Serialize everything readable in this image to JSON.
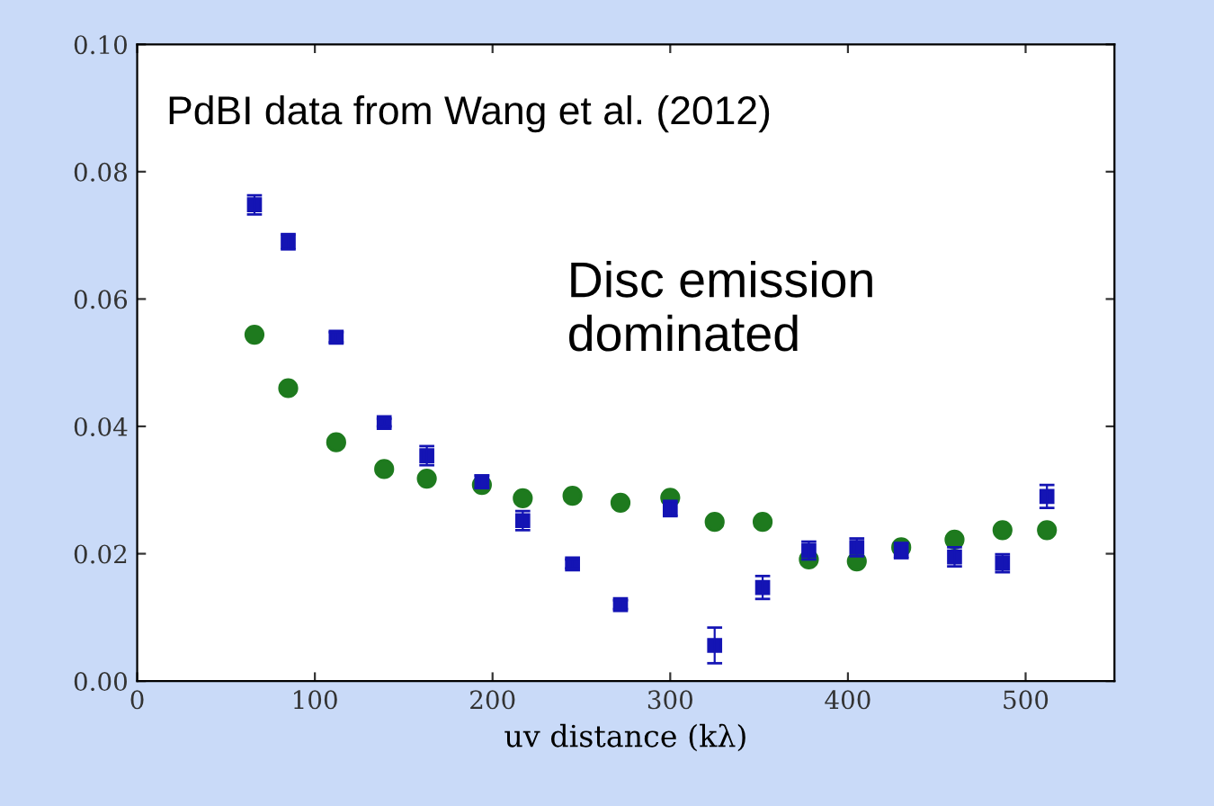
{
  "chart_data": {
    "type": "scatter",
    "xlabel": "uv distance (kλ)",
    "x": [
      66,
      85,
      112,
      139,
      163,
      194,
      217,
      245,
      272,
      300,
      325,
      352,
      378,
      405,
      430,
      460,
      487,
      512
    ],
    "series": [
      {
        "color": "#1414b4",
        "marker": "square",
        "values": [
          0.0748,
          0.069,
          0.054,
          0.0406,
          0.0354,
          0.0313,
          0.0252,
          0.0184,
          0.012,
          0.0271,
          0.0056,
          0.0147,
          0.0205,
          0.021,
          0.0205,
          0.0195,
          0.0185,
          0.029
        ],
        "errors": [
          0.0015,
          0.0012,
          0.0008,
          0.0006,
          0.0015,
          0.001,
          0.0015,
          0.0007,
          0.0007,
          0.0012,
          0.0028,
          0.0018,
          0.0014,
          0.0014,
          0.0012,
          0.0015,
          0.0014,
          0.0018
        ]
      },
      {
        "color": "#1e7a1e",
        "marker": "circle",
        "values": [
          0.0544,
          0.046,
          0.0375,
          0.0333,
          0.0318,
          0.0308,
          0.0287,
          0.0291,
          0.028,
          0.0288,
          0.025,
          0.025,
          0.0191,
          0.0188,
          0.021,
          0.0222,
          0.0237,
          0.0237
        ]
      }
    ],
    "xlim": [
      0,
      550
    ],
    "xticks": [
      0,
      100,
      200,
      300,
      400,
      500
    ],
    "ylim": [
      0,
      0.1
    ],
    "yticks": [
      {
        "value": 0,
        "label": "0.00"
      },
      {
        "value": 0.02,
        "label": "0.02"
      },
      {
        "value": 0.04,
        "label": "0.04"
      },
      {
        "value": 0.06,
        "label": "0.06"
      },
      {
        "value": 0.08,
        "label": "0.08"
      },
      {
        "value": 0.1,
        "label": "0.10"
      }
    ],
    "grid": false,
    "legend": false,
    "annotations": [
      "PdBI data from Wang et al. (2012)",
      "Disc emission\ndominated"
    ]
  }
}
